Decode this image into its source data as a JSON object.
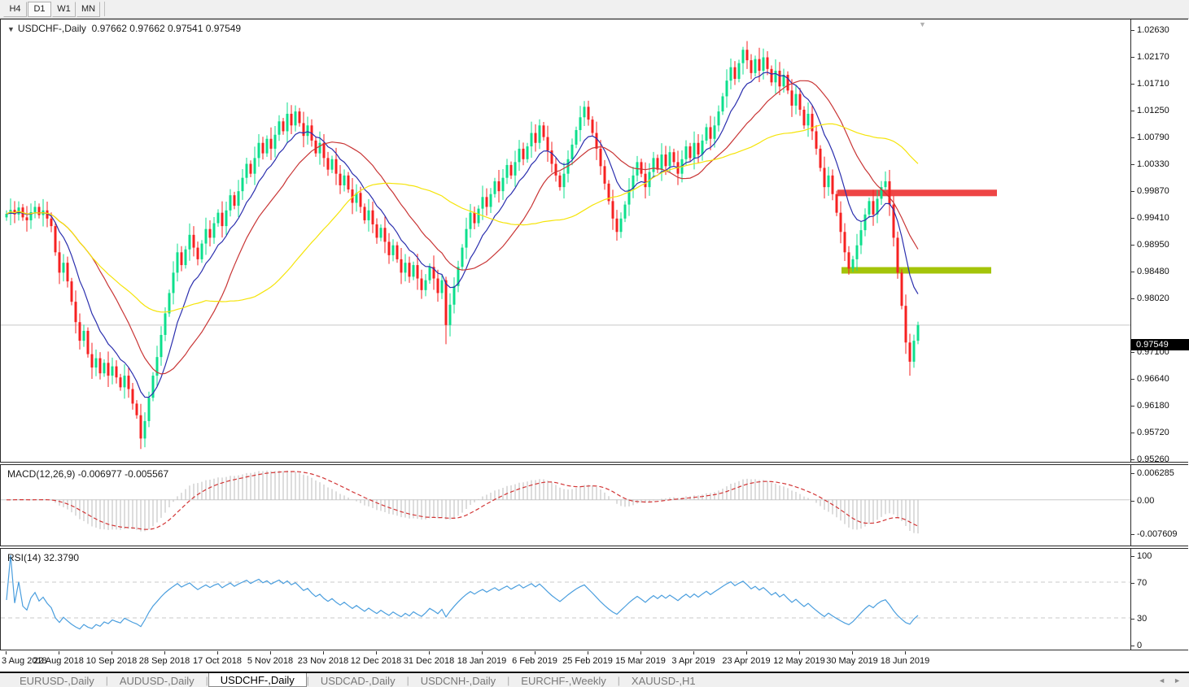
{
  "toolbar": {
    "buttons": [
      {
        "label": "H4",
        "active": false
      },
      {
        "label": "D1",
        "active": true
      },
      {
        "label": "W1",
        "active": false
      },
      {
        "label": "MN",
        "active": false
      }
    ]
  },
  "tabs": {
    "items": [
      {
        "label": "EURUSD-,Daily",
        "active": false
      },
      {
        "label": "AUDUSD-,Daily",
        "active": false
      },
      {
        "label": "USDCHF-,Daily",
        "active": true
      },
      {
        "label": "USDCAD-,Daily",
        "active": false
      },
      {
        "label": "USDCNH-,Daily",
        "active": false
      },
      {
        "label": "EURCHF-,Weekly",
        "active": false
      },
      {
        "label": "XAUUSD-,H1",
        "active": false
      }
    ],
    "scroll_left_icon": "◄",
    "scroll_right_icon": "►"
  },
  "chart_data": {
    "type": "candlestick",
    "title_symbol": "USDCHF-,Daily",
    "title_ohlc": "0.97662 0.97662 0.97541 0.97549",
    "ohlc_display": {
      "open": "0.97662",
      "high": "0.97662",
      "low": "0.97541",
      "close": "0.97549"
    },
    "current_price": 0.97549,
    "current_price_label": "0.97549",
    "y_axis_range": [
      0.952,
      1.028
    ],
    "x_start": 7,
    "x_step": 5,
    "x_tick_every": 13,
    "x_tick_labels": [
      "3 Aug 2018",
      "22 Aug 2018",
      "10 Sep 2018",
      "28 Sep 2018",
      "17 Oct 2018",
      "5 Nov 2018",
      "23 Nov 2018",
      "12 Dec 2018",
      "31 Dec 2018",
      "18 Jan 2019",
      "6 Feb 2019",
      "25 Feb 2019",
      "15 Mar 2019",
      "3 Apr 2019",
      "23 Apr 2019",
      "12 May 2019",
      "30 May 2019",
      "18 Jun 2019"
    ],
    "y_ticks": [
      {
        "v": 1.0263,
        "label": "1.02630"
      },
      {
        "v": 1.0217,
        "label": "1.02170"
      },
      {
        "v": 1.0171,
        "label": "1.01710"
      },
      {
        "v": 1.0125,
        "label": "1.01250"
      },
      {
        "v": 1.0079,
        "label": "1.00790"
      },
      {
        "v": 1.0033,
        "label": "1.00330"
      },
      {
        "v": 0.9987,
        "label": "0.99870"
      },
      {
        "v": 0.9941,
        "label": "0.99410"
      },
      {
        "v": 0.9895,
        "label": "0.98950"
      },
      {
        "v": 0.9848,
        "label": "0.98480"
      },
      {
        "v": 0.9802,
        "label": "0.98020"
      },
      {
        "v": 0.971,
        "label": "0.97100"
      },
      {
        "v": 0.9664,
        "label": "0.96640"
      },
      {
        "v": 0.9618,
        "label": "0.96180"
      },
      {
        "v": 0.9572,
        "label": "0.95720"
      },
      {
        "v": 0.9526,
        "label": "0.95260"
      }
    ],
    "open_first": 0.994,
    "closes": [
      0.9946,
      0.9953,
      0.9945,
      0.9957,
      0.994,
      0.9935,
      0.9949,
      0.9958,
      0.9944,
      0.9952,
      0.9938,
      0.9925,
      0.988,
      0.9845,
      0.9862,
      0.983,
      0.9795,
      0.976,
      0.9728,
      0.9745,
      0.9705,
      0.9682,
      0.9698,
      0.9672,
      0.969,
      0.9668,
      0.9684,
      0.9665,
      0.9648,
      0.9668,
      0.9645,
      0.962,
      0.96,
      0.956,
      0.959,
      0.963,
      0.9668,
      0.97,
      0.9738,
      0.9775,
      0.981,
      0.9845,
      0.988,
      0.9858,
      0.9885,
      0.991,
      0.9888,
      0.9868,
      0.9895,
      0.992,
      0.9905,
      0.993,
      0.9948,
      0.9925,
      0.9952,
      0.9978,
      0.996,
      0.9985,
      1.0008,
      1.0032,
      1.0015,
      1.0042,
      1.0068,
      1.005,
      1.0075,
      1.0058,
      1.0082,
      1.0105,
      1.0088,
      1.0118,
      1.0098,
      1.0122,
      1.0102,
      1.008,
      1.0098,
      1.0072,
      1.005,
      1.0068,
      1.0042,
      1.0022,
      1.004,
      1.0015,
      0.9995,
      1.0012,
      0.9988,
      0.9965,
      0.9982,
      0.9958,
      0.9935,
      0.9952,
      0.9928,
      0.9905,
      0.9922,
      0.9898,
      0.9875,
      0.9892,
      0.9868,
      0.9845,
      0.9862,
      0.9838,
      0.9858,
      0.9835,
      0.9815,
      0.9832,
      0.9855,
      0.9835,
      0.981,
      0.9832,
      0.9755,
      0.979,
      0.9822,
      0.9855,
      0.9888,
      0.992,
      0.9948,
      0.993,
      0.9955,
      0.9975,
      0.9958,
      0.998,
      1.0002,
      0.9985,
      1.0008,
      1.003,
      1.0012,
      1.0035,
      1.0058,
      1.004,
      1.0062,
      1.0085,
      1.0068,
      1.0098,
      1.0078,
      1.0055,
      1.0032,
      1.0012,
      0.9992,
      1.0015,
      1.004,
      1.0065,
      1.009,
      1.0112,
      1.013,
      1.0108,
      1.0085,
      1.0058,
      1.0028,
      0.9998,
      0.9968,
      0.9938,
      0.9915,
      0.9938,
      0.9962,
      0.9988,
      1.0012,
      1.0035,
      1.0015,
      0.9992,
      1.0018,
      1.0042,
      1.0022,
      1.0048,
      1.0028,
      1.0052,
      1.0035,
      1.0015,
      1.004,
      1.0062,
      1.0042,
      1.0068,
      1.0048,
      1.0072,
      1.0095,
      1.0075,
      1.0098,
      1.0122,
      1.0148,
      1.0175,
      1.0198,
      1.0178,
      1.0205,
      1.0228,
      1.021,
      1.0188,
      1.0212,
      1.0192,
      1.0215,
      1.0195,
      1.0172,
      1.0192,
      1.0165,
      1.0185,
      1.0158,
      1.0132,
      1.0152,
      1.0125,
      1.0098,
      1.0118,
      1.0088,
      1.0058,
      1.0025,
      0.9992,
      1.0012,
      0.998,
      0.9948,
      0.9915,
      0.988,
      0.9852,
      0.9868,
      0.9892,
      0.9918,
      0.9945,
      0.9968,
      0.9945,
      0.9972,
      0.9992,
      1.0002,
      0.9962,
      0.9905,
      0.9845,
      0.9788,
      0.9725,
      0.9692,
      0.9728,
      0.97549
    ],
    "wick_overrides": {
      "33": {
        "l": 0.9542
      },
      "108": {
        "l": 0.9722
      },
      "142": {
        "h": 1.014
      },
      "181": {
        "h": 1.0233
      },
      "216": {
        "h": 1.0019
      },
      "222": {
        "l": 0.9668
      }
    },
    "hlines": [
      {
        "name": "resistance-line",
        "price": 0.9982,
        "i1": 204.2,
        "i2": 243.4,
        "thickness": 8,
        "color": "#ee4545"
      },
      {
        "name": "support-line",
        "price": 0.9849,
        "i1": 205.2,
        "i2": 242.0,
        "thickness": 8,
        "color": "#a4c40a"
      }
    ],
    "indicators": {
      "ma": [
        {
          "period": 10,
          "type": "ema",
          "color": "#2b2fae"
        },
        {
          "period": 22,
          "type": "sma",
          "color": "#c93636"
        },
        {
          "period": 50,
          "type": "sma",
          "color": "#f5e40a"
        }
      ],
      "macd": {
        "title": "MACD(12,26,9) -0.006977 -0.005567",
        "fast": 12,
        "slow": 26,
        "signal": 9,
        "value": -0.006977,
        "signal_value": -0.005567,
        "range": [
          -0.0105,
          0.008
        ],
        "y_ticks": [
          {
            "v": 0.006285,
            "label": "0.006285"
          },
          {
            "v": 0,
            "label": "0.00"
          },
          {
            "v": -0.007609,
            "label": "-0.007609"
          }
        ]
      },
      "rsi": {
        "title": "RSI(14) 32.3790",
        "period": 14,
        "value": 32.379,
        "range": [
          0,
          100
        ],
        "levels": [
          70,
          30
        ],
        "y_ticks": [
          {
            "v": 100,
            "label": "100"
          },
          {
            "v": 70,
            "label": "70"
          },
          {
            "v": 30,
            "label": "30"
          },
          {
            "v": 0,
            "label": "0"
          }
        ]
      }
    },
    "colors": {
      "bull": "#0ddf8c",
      "bear": "#f62121",
      "grid": "#c8c8c8",
      "macd_hist": "#bbbbbb",
      "macd_signal": "#d23535",
      "rsi_line": "#4a9ede",
      "level_dash": "#c8c8c8"
    },
    "shift_marker_icon": "▼"
  }
}
